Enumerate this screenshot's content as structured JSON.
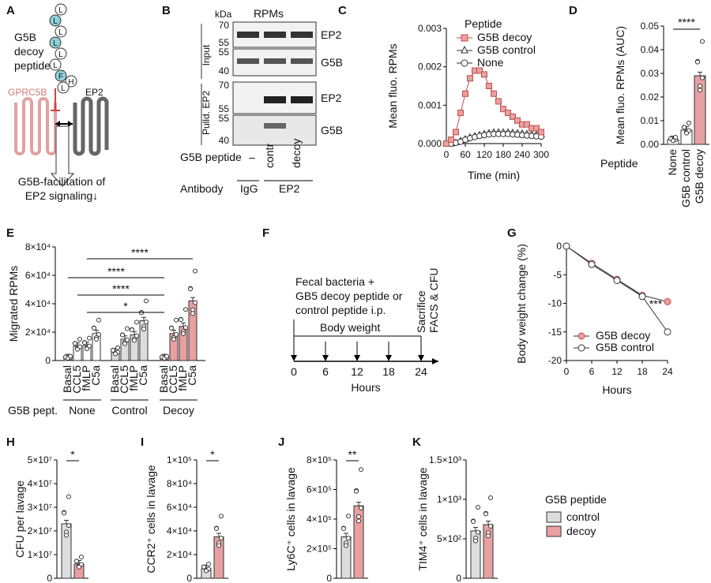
{
  "panels": [
    "A",
    "B",
    "C",
    "D",
    "E",
    "F",
    "G",
    "H",
    "I",
    "J",
    "K"
  ],
  "panelA": {
    "residues": [
      "L",
      "L",
      "L",
      "L",
      "L",
      "L",
      "F",
      "H",
      "L"
    ],
    "peptide_label": [
      "G5B",
      "decoy",
      "peptide"
    ],
    "receptor1": "GPRC5B",
    "receptor2": "EP2",
    "caption": [
      "G5B-facilitation of",
      "EP2 signaling↓"
    ]
  },
  "panelB": {
    "title": "RPMs",
    "unit": "kDa",
    "groups": [
      "Input",
      "Pulld. EP2"
    ],
    "blots": [
      {
        "name": "EP2",
        "markers": [
          "70",
          "55"
        ]
      },
      {
        "name": "G5B",
        "markers": [
          "55",
          "40"
        ]
      },
      {
        "name": "EP2",
        "markers": [
          "70",
          "55"
        ]
      },
      {
        "name": "G5B",
        "markers": [
          "55",
          "40"
        ]
      }
    ],
    "peptide_row": {
      "label": "G5B peptide",
      "values": [
        "–",
        "contr",
        "decoy"
      ]
    },
    "antibody_row": {
      "label": "Antibody",
      "values": [
        "IgG",
        "EP2"
      ]
    }
  },
  "colors": {
    "decoy": "#e8a0a0",
    "control": "#dddddd",
    "none": "#ffffff",
    "decoy_stroke": "#c0504d"
  },
  "chart_data": [
    {
      "id": "C",
      "type": "line",
      "xlabel": "Time (min)",
      "ylabel": "Mean fluo. RPMs",
      "xlim": [
        0,
        300
      ],
      "ylim": [
        0,
        0.003
      ],
      "xticks": [
        "0",
        "60",
        "120",
        "180",
        "240",
        "300"
      ],
      "yticks": [
        "0.000",
        "0.001",
        "0.002",
        "0.003"
      ],
      "legend_title": "Peptide",
      "x": [
        0,
        15,
        30,
        45,
        60,
        75,
        90,
        105,
        120,
        135,
        150,
        165,
        180,
        195,
        210,
        225,
        240,
        255,
        270,
        285,
        300
      ],
      "series": [
        {
          "name": "G5B decoy",
          "values": [
            0.0,
            0.0001,
            0.0003,
            0.0008,
            0.0013,
            0.0017,
            0.0019,
            0.0019,
            0.0018,
            0.0015,
            0.0013,
            0.0011,
            0.0009,
            0.0008,
            0.0007,
            0.0006,
            0.0005,
            0.0005,
            0.0004,
            0.0004,
            0.0003
          ]
        },
        {
          "name": "G5B control",
          "values": [
            0.0,
            0.0,
            3e-05,
            8e-05,
            0.00012,
            0.00017,
            0.0002,
            0.00023,
            0.00026,
            0.00028,
            0.0003,
            0.0003,
            0.0003,
            0.0003,
            0.00029,
            0.00028,
            0.00027,
            0.00026,
            0.00025,
            0.00024,
            0.00023
          ]
        },
        {
          "name": "None",
          "values": [
            0.0,
            0.0,
            2e-05,
            5e-05,
            0.0001,
            0.00014,
            0.00017,
            0.0002,
            0.00022,
            0.00024,
            0.00025,
            0.00025,
            0.00025,
            0.00025,
            0.00024,
            0.00023,
            0.00022,
            0.00021,
            0.0002,
            0.00019,
            0.00018
          ]
        }
      ]
    },
    {
      "id": "D",
      "type": "bar",
      "ylabel": "Mean fluo. RPMs (AUC)",
      "xlabel": "Peptide",
      "ylim": [
        0,
        0.05
      ],
      "yticks": [
        "0.00",
        "0.01",
        "0.02",
        "0.03",
        "0.04",
        "0.05"
      ],
      "categories": [
        "None",
        "G5B control",
        "G5B decoy"
      ],
      "values": [
        0.002,
        0.006,
        0.029
      ],
      "significance": "****"
    },
    {
      "id": "E",
      "type": "bar",
      "ylabel": "Migrated RPMs",
      "ylim": [
        0,
        80000
      ],
      "yticks": [
        "0",
        "2×10⁴",
        "4×10⁴",
        "6×10⁴",
        "8×10⁴"
      ],
      "categories": [
        "Basal",
        "CCL5",
        "fMLP",
        "C5a",
        "Basal",
        "CCL5",
        "fMLP",
        "C5a",
        "Basal",
        "CCL5",
        "fMLP",
        "C5a"
      ],
      "groups": [
        "None",
        "Control",
        "Decoy"
      ],
      "group_label": "G5B pept.",
      "values": [
        2000,
        10000,
        10500,
        19000,
        6000,
        15000,
        18000,
        28000,
        2000,
        19000,
        24000,
        42000
      ],
      "significance": [
        "*",
        "****",
        "****",
        "****"
      ]
    },
    {
      "id": "G",
      "type": "line",
      "xlabel": "Hours",
      "ylabel": "Body weight change (%)",
      "xlim": [
        0,
        24
      ],
      "ylim": [
        -20,
        0
      ],
      "xticks": [
        "0",
        "6",
        "12",
        "18",
        "24"
      ],
      "yticks": [
        "0",
        "-5",
        "-10",
        "-15",
        "-20"
      ],
      "x": [
        0,
        6,
        12,
        18,
        24
      ],
      "series": [
        {
          "name": "G5B decoy",
          "values": [
            0,
            -3,
            -5.8,
            -8.6,
            -9.7
          ]
        },
        {
          "name": "G5B control",
          "values": [
            0,
            -3.2,
            -6,
            -8.8,
            -15
          ]
        }
      ],
      "significance": "***"
    },
    {
      "id": "H",
      "type": "bar",
      "ylabel": "CFU per lavage",
      "ylim": [
        0,
        50000000
      ],
      "yticks": [
        "0",
        "1×10⁷",
        "2×10⁷",
        "3×10⁷",
        "4×10⁷",
        "5×10⁷"
      ],
      "categories": [
        "control",
        "decoy"
      ],
      "values": [
        23000000,
        6000000
      ],
      "significance": "*"
    },
    {
      "id": "I",
      "type": "bar",
      "ylabel": "CCR2⁺ cells in lavage",
      "ylim": [
        0,
        100000
      ],
      "yticks": [
        "0",
        "2×10⁴",
        "4×10⁴",
        "6×10⁴",
        "8×10⁴",
        "1×10⁵"
      ],
      "categories": [
        "control",
        "decoy"
      ],
      "values": [
        8000,
        35000
      ],
      "significance": "*"
    },
    {
      "id": "J",
      "type": "bar",
      "ylabel": "Ly6C⁺ cells in lavage",
      "ylim": [
        0,
        800000
      ],
      "yticks": [
        "0",
        "2×10⁵",
        "4×10⁵",
        "6×10⁵",
        "8×10⁵"
      ],
      "categories": [
        "control",
        "decoy"
      ],
      "values": [
        280000,
        490000
      ],
      "significance": "**"
    },
    {
      "id": "K",
      "type": "bar",
      "ylabel": "TIM4⁺ cells in lavage",
      "ylim": [
        0,
        1500
      ],
      "yticks": [
        "0",
        "5×10²",
        "1×10³",
        "1.5×10³"
      ],
      "categories": [
        "control",
        "decoy"
      ],
      "values": [
        600,
        680
      ]
    }
  ],
  "panelF": {
    "text1": [
      "Fecal bacteria +",
      "GB5 decoy peptide or",
      "control peptide i.p."
    ],
    "text2": "Body weight",
    "text3": [
      "Sacrifice",
      "FACS & CFU"
    ],
    "ticks": [
      "0",
      "6",
      "12",
      "18",
      "24"
    ],
    "xlabel": "Hours"
  },
  "legendK": {
    "title": "G5B peptide",
    "items": [
      "control",
      "decoy"
    ]
  }
}
